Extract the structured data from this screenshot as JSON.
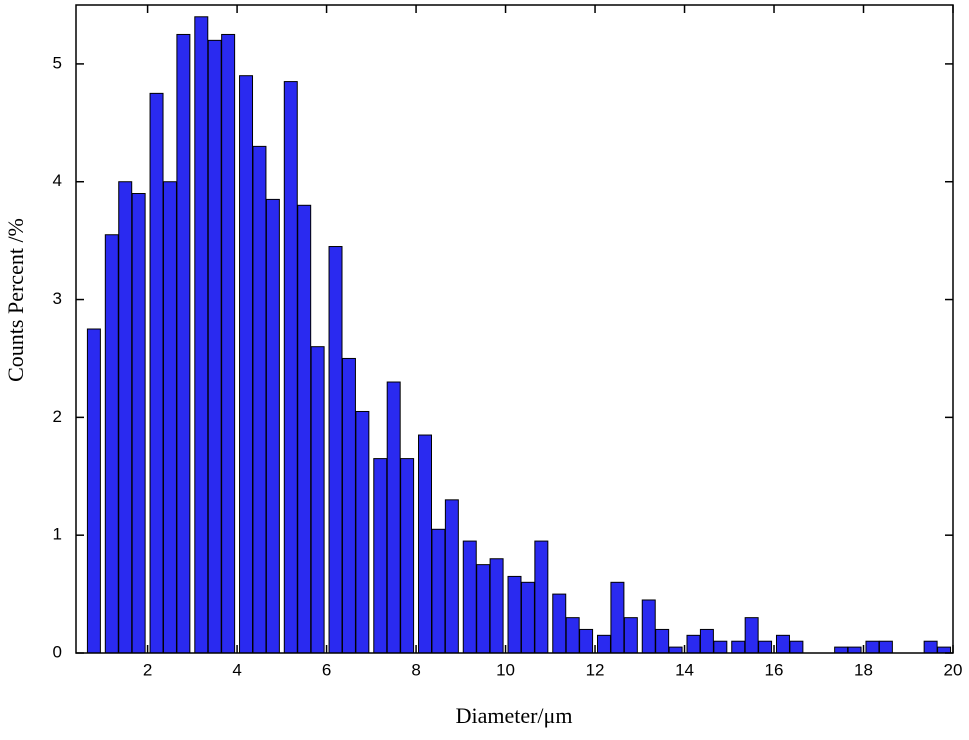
{
  "chart_data": {
    "type": "bar",
    "x_label": "Diameter/μm",
    "y_label": "Counts Percent /%",
    "x": [
      0.8,
      1.2,
      1.5,
      1.8,
      2.2,
      2.5,
      2.8,
      3.2,
      3.5,
      3.8,
      4.2,
      4.5,
      4.8,
      5.2,
      5.5,
      5.8,
      6.2,
      6.5,
      6.8,
      7.2,
      7.5,
      7.8,
      8.2,
      8.5,
      8.8,
      9.2,
      9.5,
      9.8,
      10.2,
      10.5,
      10.8,
      11.2,
      11.5,
      11.8,
      12.2,
      12.5,
      12.8,
      13.2,
      13.5,
      13.8,
      14.2,
      14.5,
      14.8,
      15.2,
      15.5,
      15.8,
      16.2,
      16.5,
      17.5,
      17.8,
      18.2,
      18.5,
      19.5,
      19.8
    ],
    "values": [
      2.75,
      3.55,
      4.0,
      3.9,
      4.75,
      4.0,
      5.25,
      5.4,
      5.2,
      5.25,
      4.9,
      4.3,
      3.85,
      4.85,
      3.8,
      2.6,
      3.45,
      2.5,
      2.05,
      1.65,
      2.3,
      1.65,
      1.85,
      1.05,
      1.3,
      0.95,
      0.75,
      0.8,
      0.65,
      0.6,
      0.95,
      0.5,
      0.3,
      0.2,
      0.15,
      0.6,
      0.3,
      0.45,
      0.2,
      0.05,
      0.15,
      0.2,
      0.1,
      0.1,
      0.3,
      0.1,
      0.15,
      0.1,
      0.05,
      0.05,
      0.1,
      0.1,
      0.1,
      0.05
    ],
    "color": "#2a2af0",
    "xlim": [
      0.4,
      20
    ],
    "xticks": [
      2,
      4,
      6,
      8,
      10,
      12,
      14,
      16,
      18,
      20
    ],
    "ylim": [
      0,
      5.5
    ],
    "yticks": [
      0,
      1,
      2,
      3,
      4,
      5
    ]
  }
}
